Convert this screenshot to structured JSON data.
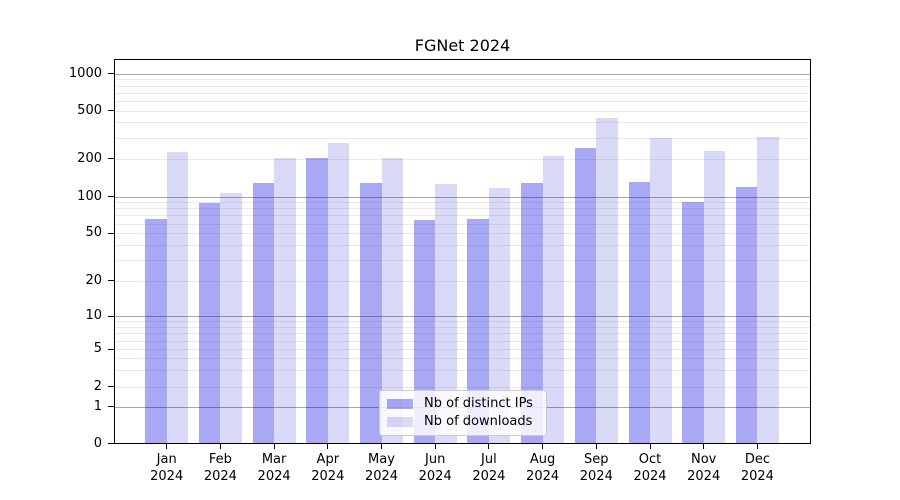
{
  "figure": {
    "title": "FGNet 2024"
  },
  "chart_data": {
    "type": "bar",
    "title": "FGNet 2024",
    "categories": [
      "Jan 2024",
      "Feb 2024",
      "Mar 2024",
      "Apr 2024",
      "May 2024",
      "Jun 2024",
      "Jul 2024",
      "Aug 2024",
      "Sep 2024",
      "Oct 2024",
      "Nov 2024",
      "Dec 2024"
    ],
    "series": [
      {
        "name": "Nb of distinct IPs",
        "color": "rgba(0,0,225,0.34)",
        "values": [
          66,
          89,
          128,
          202,
          128,
          64,
          66,
          128,
          247,
          131,
          91,
          120
        ]
      },
      {
        "name": "Nb of downloads",
        "color": "rgba(0,0,205,0.15)",
        "values": [
          230,
          106,
          203,
          270,
          204,
          126,
          117,
          212,
          437,
          299,
          232,
          302
        ]
      }
    ],
    "xlabel": "",
    "ylabel": "",
    "yscale": "symlog",
    "y_ticks": [
      0,
      1,
      2,
      5,
      10,
      20,
      50,
      100,
      200,
      500,
      1000
    ],
    "ylim": [
      0,
      1300
    ],
    "grid": "horizontal major and minor gridlines",
    "legend_position": "lower center"
  }
}
